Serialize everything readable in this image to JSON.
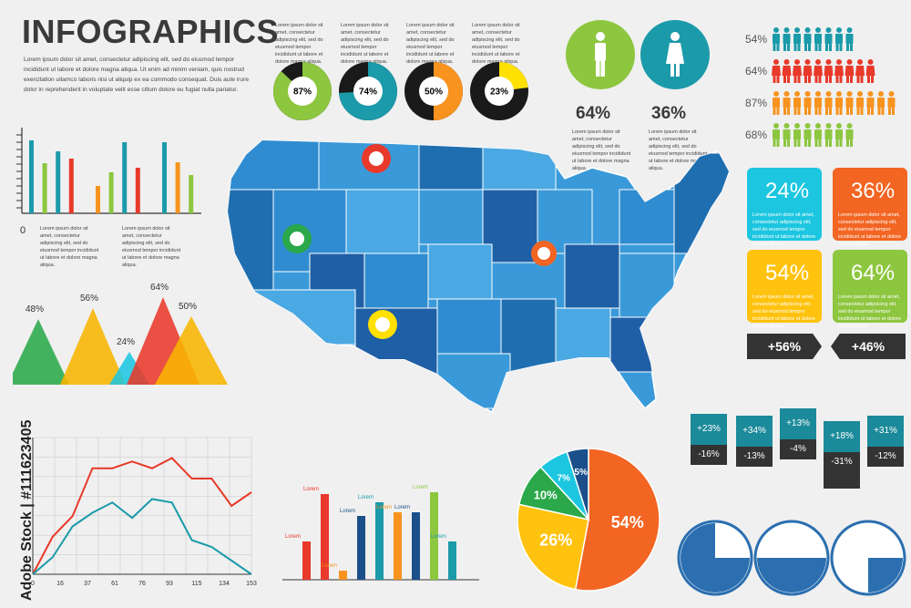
{
  "header": {
    "title": "INFOGRAPHICS",
    "intro": "Lorem ipsum dolor sit amet, consectetur adipiscing elit, sed do eiusmod tempor incididunt ut labore et dolore magna aliqua. Ut enim ad minim veniam, quis nostrud exercitation ullamco laboris nisi ut aliquip ex ea commodo consequat. Duis aute irure dolor in reprehenderit in voluptate velit esse cillum dolore eu fugiat nulla pariatur."
  },
  "small_text": "Lorem ipsum dolor sit amet, consectetur adipiscing elit, sed do eiusmod tempor incididunt ut labore et dolore magna aliqua.",
  "donuts": [
    {
      "label": "87%",
      "value": 87,
      "color": "#8dc63f"
    },
    {
      "label": "74%",
      "value": 74,
      "color": "#1b9aaa"
    },
    {
      "label": "50%",
      "value": 50,
      "color": "#f7931e"
    },
    {
      "label": "23%",
      "value": 23,
      "color": "#ffe000"
    }
  ],
  "gender": {
    "male_pct": "64%",
    "female_pct": "36%",
    "male_color": "#8dc63f",
    "female_color": "#1b9aaa"
  },
  "people_rows": [
    {
      "pct": "54%",
      "color": "#1b9aaa"
    },
    {
      "pct": "64%",
      "color": "#e8392a"
    },
    {
      "pct": "87%",
      "color": "#f7931e"
    },
    {
      "pct": "68%",
      "color": "#8dc63f"
    }
  ],
  "boxes": [
    {
      "pct": "24%",
      "color": "#1cc6e0"
    },
    {
      "pct": "36%",
      "color": "#f26522"
    },
    {
      "pct": "54%",
      "color": "#ffc20e"
    },
    {
      "pct": "64%",
      "color": "#8dc63f"
    }
  ],
  "tags": {
    "left": "+56%",
    "right": "+46%"
  },
  "stats": [
    {
      "top": "+23%",
      "bottom": "-16%"
    },
    {
      "top": "+34%",
      "bottom": "-13%"
    },
    {
      "top": "+13%",
      "bottom": "-4%"
    },
    {
      "top": "+18%",
      "bottom": "-31%"
    },
    {
      "top": "+31%",
      "bottom": "-12%"
    }
  ],
  "mountains": [
    {
      "label": "48%",
      "value": 48,
      "color": "#2aa84a"
    },
    {
      "label": "56%",
      "value": 56,
      "color": "#f7b500"
    },
    {
      "label": "24%",
      "value": 24,
      "color": "#1cc6e0"
    },
    {
      "label": "64%",
      "value": 64,
      "color": "#e8392a"
    },
    {
      "label": "50%",
      "value": 50,
      "color": "#f7b500"
    }
  ],
  "pie": {
    "slices": [
      {
        "label": "54%",
        "value": 54,
        "color": "#f26522"
      },
      {
        "label": "26%",
        "value": 26,
        "color": "#ffc20e"
      },
      {
        "label": "10%",
        "value": 10,
        "color": "#2aa84a"
      },
      {
        "label": "7%",
        "value": 7,
        "color": "#1cc6e0"
      },
      {
        "label": "5%",
        "value": 5,
        "color": "#1b4f8a"
      }
    ]
  },
  "line_chart": {
    "x_ticks": [
      "0",
      "16",
      "37",
      "61",
      "76",
      "93",
      "115",
      "134",
      "153"
    ],
    "red": [
      0,
      22,
      34,
      62,
      62,
      66,
      62,
      68,
      56,
      56,
      40,
      48
    ],
    "teal": [
      0,
      10,
      28,
      36,
      42,
      33,
      44,
      42,
      20,
      16,
      8,
      0
    ],
    "red_color": "#e8392a",
    "teal_color": "#1b9aaa"
  },
  "tl_bars": {
    "axis_zero": "0",
    "values": [
      80,
      55,
      68,
      60,
      0,
      30,
      45,
      78,
      50,
      0,
      78,
      56,
      42
    ],
    "colors": [
      "#1b9aaa",
      "#8dc63f",
      "#1b9aaa",
      "#e8392a",
      "#888",
      "#f7931e",
      "#8dc63f",
      "#1b9aaa",
      "#e8392a",
      "#888",
      "#1b9aaa",
      "#f7931e",
      "#8dc63f"
    ]
  },
  "bottom_bars": {
    "label": "Lorem",
    "items": [
      {
        "value": 42,
        "color": "#e8392a"
      },
      {
        "value": 94,
        "color": "#e8392a"
      },
      {
        "value": 10,
        "color": "#f7931e"
      },
      {
        "value": 70,
        "color": "#1b4f8a"
      },
      {
        "value": 85,
        "color": "#1b9aaa"
      },
      {
        "value": 74,
        "color": "#f7931e"
      },
      {
        "value": 74,
        "color": "#1b4f8a"
      },
      {
        "value": 96,
        "color": "#8dc63f"
      },
      {
        "value": 42,
        "color": "#1b9aaa"
      }
    ]
  },
  "pies_small": [
    0.75,
    0.5,
    0.25
  ],
  "watermark": "Adobe Stock | #111623405"
}
